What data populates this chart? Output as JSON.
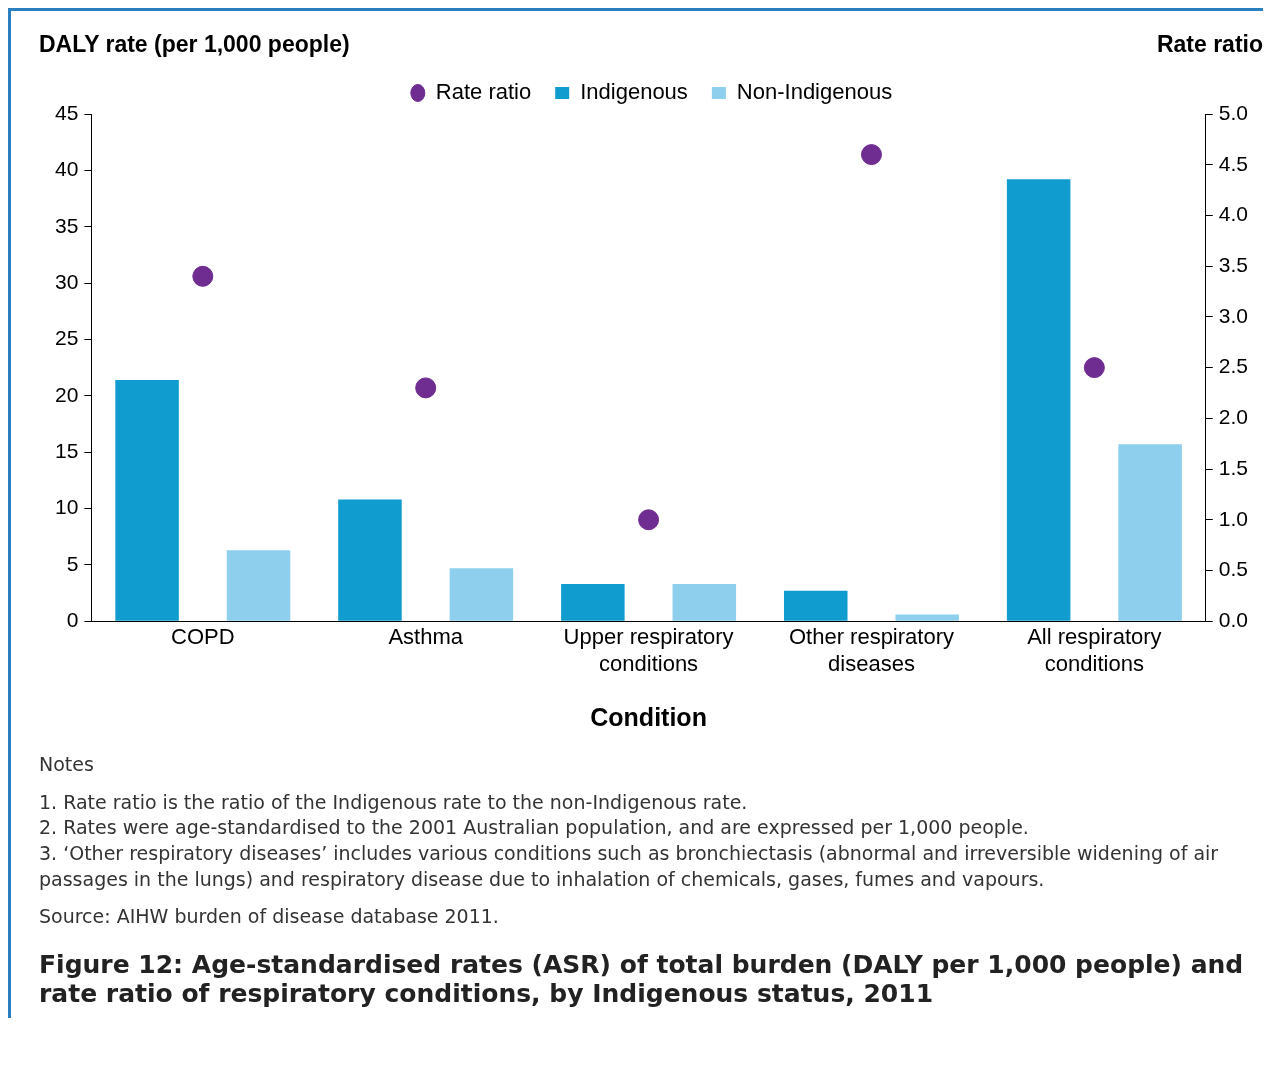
{
  "chart_data": {
    "type": "bar",
    "title": "Figure 12: Age-standardised rates (ASR) of total burden (DALY per 1,000 people) and rate ratio of respiratory conditions, by Indigenous status, 2011",
    "ylabel": "DALY rate (per 1,000 people)",
    "y2label": "Rate ratio",
    "xlabel": "Condition",
    "categories": [
      "COPD",
      "Asthma",
      "Upper respiratory conditions",
      "Other respiratory diseases",
      "All respiratory conditions"
    ],
    "series": [
      {
        "name": "Indigenous",
        "color": "#119ccf",
        "values": [
          21.4,
          10.8,
          3.3,
          2.7,
          39.2
        ]
      },
      {
        "name": "Non-Indigenous",
        "color": "#8ecfee",
        "values": [
          6.3,
          4.7,
          3.3,
          0.6,
          15.7
        ]
      },
      {
        "name": "Rate ratio",
        "type": "scatter",
        "axis": "y2",
        "color": "#6f2c91",
        "values": [
          3.4,
          2.3,
          1.0,
          4.6,
          2.5
        ]
      }
    ],
    "ylim": [
      0,
      45
    ],
    "yticks": [
      0,
      5,
      10,
      15,
      20,
      25,
      30,
      35,
      40,
      45
    ],
    "y2lim": [
      0,
      5
    ],
    "y2ticks": [
      {
        "value": 0,
        "label": "0.0"
      },
      {
        "value": 0.5,
        "label": "0.5"
      },
      {
        "value": 1,
        "label": "1.0"
      },
      {
        "value": 1.5,
        "label": "1.5"
      },
      {
        "value": 2,
        "label": "2.0"
      },
      {
        "value": 2.5,
        "label": "2.5"
      },
      {
        "value": 3,
        "label": "3.0"
      },
      {
        "value": 3.5,
        "label": "3.5"
      },
      {
        "value": 4,
        "label": "4.0"
      },
      {
        "value": 4.5,
        "label": "4.5"
      },
      {
        "value": 5,
        "label": "5.0"
      }
    ],
    "grid": false,
    "legend": "top",
    "marker": "circle",
    "annotations": [
      "Notes",
      "1. Rate ratio is the ratio of the Indigenous rate to the non-Indigenous rate.",
      "2. Rates were age-standardised to the 2001 Australian population, and are expressed per 1,000 people.",
      "3. ‘Other respiratory diseases’ includes various conditions such as bronchiectasis (abnormal and irreversible widening of air passages in the lungs) and respiratory disease due to inhalation of chemicals, gases, fumes and vapours.",
      "Source: AIHW burden of disease database 2011."
    ]
  }
}
